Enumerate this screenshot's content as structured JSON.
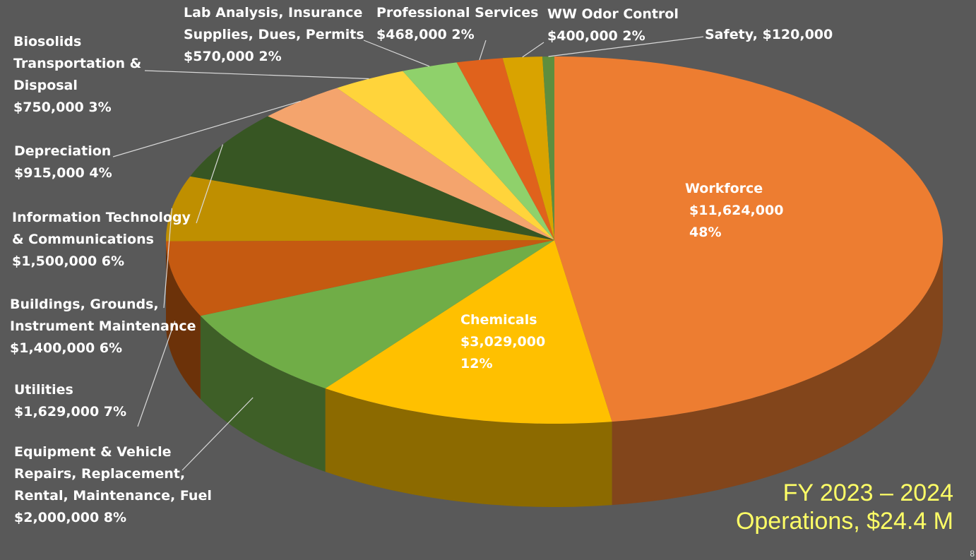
{
  "page": {
    "title_line1": "FY 2023 – 2024",
    "title_line2": "Operations, $24.4 M",
    "slide_number": "8",
    "background": "#595959",
    "title_color": "#ffff66"
  },
  "chart_data": {
    "type": "pie",
    "style": "3d-pie",
    "total_label": "Operations, $24.4 M",
    "slices": [
      {
        "name": "Workforce",
        "value": 11624000,
        "percent": 48,
        "color": "#ED7D31",
        "label": [
          "Workforce",
          "$11,624,000",
          "48%"
        ]
      },
      {
        "name": "Chemicals",
        "value": 3029000,
        "percent": 12,
        "color": "#FFC000",
        "label": [
          "Chemicals",
          "$3,029,000",
          "12%"
        ]
      },
      {
        "name": "Equipment & Vehicle Repairs, Replacement, Rental, Maintenance, Fuel",
        "value": 2000000,
        "percent": 8,
        "color": "#70AD47",
        "label": [
          "Equipment & Vehicle",
          "Repairs, Replacement,",
          "Rental, Maintenance, Fuel",
          "$2,000,000  8%"
        ]
      },
      {
        "name": "Utilities",
        "value": 1629000,
        "percent": 7,
        "color": "#C55A11",
        "label": [
          "Utilities",
          "$1,629,000  7%"
        ]
      },
      {
        "name": "Buildings, Grounds, Instrument Maintenance",
        "value": 1400000,
        "percent": 6,
        "color": "#BF8F00",
        "label": [
          "Buildings, Grounds,",
          "Instrument Maintenance",
          "$1,400,000  6%"
        ]
      },
      {
        "name": "Information Technology & Communications",
        "value": 1500000,
        "percent": 6,
        "color": "#375623",
        "label": [
          "Information Technology",
          "& Communications",
          "$1,500,000   6%"
        ]
      },
      {
        "name": "Depreciation",
        "value": 915000,
        "percent": 4,
        "color": "#F4A46D",
        "label": [
          "Depreciation",
          "$915,000  4%"
        ]
      },
      {
        "name": "Biosolids Transportation & Disposal",
        "value": 750000,
        "percent": 3,
        "color": "#FFD43B",
        "label": [
          "Biosolids",
          "Transportation &",
          "Disposal",
          "$750,000  3%"
        ]
      },
      {
        "name": "Lab Analysis, Insurance Supplies, Dues, Permits",
        "value": 570000,
        "percent": 2,
        "color": "#8FD16B",
        "label": [
          "Lab Analysis, Insurance",
          "Supplies, Dues, Permits",
          "$570,000  2%"
        ]
      },
      {
        "name": "Professional Services",
        "value": 468000,
        "percent": 2,
        "color": "#E0621C",
        "label": [
          "Professional Services",
          "$468,000  2%"
        ]
      },
      {
        "name": "WW Odor Control",
        "value": 400000,
        "percent": 2,
        "color": "#D9A300",
        "label": [
          "WW Odor Control",
          "$400,000  2%"
        ]
      },
      {
        "name": "Safety",
        "value": 120000,
        "percent": 0,
        "color": "#5E8E3E",
        "label": [
          "Safety, $120,000"
        ]
      }
    ]
  }
}
